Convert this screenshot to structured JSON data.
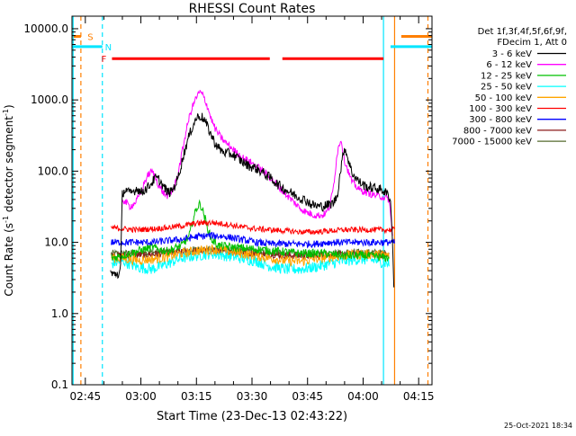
{
  "chart_data": {
    "type": "line",
    "title": "RHESSI Count Rates",
    "xlabel": "Start Time (23-Dec-13 02:43:22)",
    "ylabel_parts": [
      "Count Rate (s",
      "-1",
      " detector segment",
      "-1",
      ")"
    ],
    "yscale": "log",
    "ylim": [
      0.1,
      15000
    ],
    "xlim_minutes": [
      -1.6,
      95.6
    ],
    "x_ticks": [
      {
        "minute": 2,
        "label": "02:45"
      },
      {
        "minute": 17,
        "label": "03:00"
      },
      {
        "minute": 32,
        "label": "03:15"
      },
      {
        "minute": 47,
        "label": "03:30"
      },
      {
        "minute": 62,
        "label": "03:45"
      },
      {
        "minute": 77,
        "label": "04:00"
      },
      {
        "minute": 92,
        "label": "04:15"
      }
    ],
    "y_ticks": [
      {
        "value": 0.1,
        "label": "0.1"
      },
      {
        "value": 1,
        "label": "1.0"
      },
      {
        "value": 10,
        "label": "10.0"
      },
      {
        "value": 100,
        "label": "100.0"
      },
      {
        "value": 1000,
        "label": "1000.0"
      },
      {
        "value": 10000,
        "label": "10000.0"
      }
    ],
    "legend_header": [
      "Det 1f,3f,4f,5f,6f,9f,",
      "FDecim 1, Att 0"
    ],
    "legend_position": "right",
    "series": [
      {
        "name": "3 - 6 keV",
        "color": "#000000",
        "x": [
          8.8,
          9.0,
          9.6,
          10.5,
          11.0,
          11.5,
          12,
          13,
          14,
          15,
          16,
          17,
          18,
          19,
          20,
          21,
          22,
          23,
          24,
          25,
          26,
          27,
          28,
          29,
          30,
          31,
          32,
          33,
          34,
          35,
          36,
          37,
          38,
          39,
          40,
          42,
          44,
          46,
          48,
          50,
          52,
          54,
          56,
          58,
          60,
          62,
          63,
          64,
          65,
          66,
          67,
          68,
          69,
          70,
          71,
          72,
          74,
          76,
          78,
          80,
          82,
          83,
          84,
          84.5,
          85,
          85.3
        ],
        "y": [
          4,
          3.6,
          3.5,
          3.7,
          3.5,
          4,
          50,
          55,
          48,
          52,
          58,
          50,
          55,
          60,
          70,
          80,
          75,
          62,
          52,
          50,
          60,
          80,
          130,
          210,
          310,
          430,
          560,
          600,
          540,
          420,
          320,
          250,
          210,
          190,
          180,
          170,
          140,
          120,
          110,
          95,
          80,
          65,
          55,
          48,
          42,
          38,
          34,
          33,
          32,
          32,
          33,
          34,
          36,
          45,
          110,
          220,
          95,
          70,
          60,
          58,
          55,
          50,
          45,
          35,
          8,
          2.5
        ]
      },
      {
        "name": "6 - 12 keV",
        "color": "#ff00ff",
        "x": [
          12,
          13,
          14,
          15,
          16,
          17,
          18,
          19,
          20,
          21,
          22,
          23,
          24,
          25,
          26,
          27,
          28,
          29,
          30,
          31,
          32,
          33,
          34,
          35,
          36,
          37,
          38,
          39,
          40,
          42,
          44,
          46,
          48,
          50,
          52,
          54,
          56,
          58,
          60,
          62,
          64,
          66,
          67,
          68,
          69,
          70,
          71,
          72,
          74,
          76,
          78,
          80,
          82,
          84,
          85
        ],
        "y": [
          40,
          36,
          32,
          34,
          40,
          50,
          70,
          90,
          100,
          80,
          60,
          50,
          45,
          48,
          60,
          90,
          170,
          320,
          560,
          820,
          1100,
          1300,
          1100,
          800,
          540,
          400,
          330,
          280,
          250,
          200,
          160,
          140,
          120,
          100,
          80,
          62,
          48,
          38,
          30,
          26,
          24,
          24,
          26,
          32,
          60,
          180,
          290,
          140,
          70,
          55,
          50,
          46,
          44,
          40,
          12
        ]
      },
      {
        "name": "12 - 25 keV",
        "color": "#00c000",
        "x": [
          9,
          12,
          16,
          20,
          24,
          28,
          30,
          31,
          32,
          33,
          34,
          35,
          36,
          38,
          42,
          48,
          54,
          60,
          66,
          72,
          78,
          84
        ],
        "y": [
          6,
          6.5,
          7.5,
          8.5,
          7.5,
          9,
          12,
          20,
          30,
          35,
          25,
          16,
          11,
          9,
          8.5,
          8,
          7.5,
          7,
          7,
          6.5,
          6.5,
          6
        ]
      },
      {
        "name": "25 - 50 keV",
        "color": "#00ffff",
        "x": [
          9,
          12,
          16,
          20,
          24,
          28,
          32,
          36,
          40,
          44,
          48,
          52,
          56,
          60,
          64,
          68,
          72,
          76,
          80,
          84
        ],
        "y": [
          5,
          5.5,
          4.5,
          4.2,
          5,
          6,
          6.5,
          7,
          6.5,
          6,
          5.5,
          4.6,
          4.2,
          4.2,
          4.5,
          5,
          5.5,
          5.8,
          5.6,
          5
        ]
      },
      {
        "name": "50 - 100 keV",
        "color": "#ffa500",
        "x": [
          9,
          12,
          16,
          20,
          24,
          28,
          32,
          36,
          40,
          44,
          48,
          52,
          56,
          60,
          64,
          68,
          72,
          76,
          80,
          84
        ],
        "y": [
          6,
          6,
          5.6,
          5.8,
          6.2,
          7,
          7.6,
          8,
          7.6,
          7,
          6.5,
          6,
          5.5,
          5.4,
          5.8,
          6.2,
          6.5,
          6.8,
          6.8,
          6.5
        ]
      },
      {
        "name": "100 - 300 keV",
        "color": "#ff0000",
        "x": [
          9,
          12,
          16,
          20,
          24,
          28,
          32,
          36,
          40,
          44,
          48,
          52,
          56,
          60,
          64,
          68,
          72,
          76,
          80,
          84,
          85.5
        ],
        "y": [
          16,
          15.5,
          15,
          15.5,
          16,
          17,
          18.5,
          19,
          18,
          16.5,
          15.5,
          15,
          14.5,
          14,
          14,
          14.5,
          15,
          15,
          15,
          15,
          15
        ]
      },
      {
        "name": "300 - 800 keV",
        "color": "#0000ff",
        "x": [
          9,
          12,
          16,
          20,
          24,
          28,
          32,
          36,
          40,
          44,
          48,
          52,
          56,
          60,
          64,
          68,
          72,
          76,
          80,
          84,
          85.5
        ],
        "y": [
          10,
          10,
          10,
          10,
          10.5,
          11,
          12,
          12.5,
          12,
          11,
          10,
          9.5,
          9.5,
          9.5,
          9.5,
          10,
          10,
          10,
          10,
          10,
          10
        ]
      },
      {
        "name": "800 - 7000 keV",
        "color": "#8b1a1a",
        "x": [
          9,
          12,
          16,
          20,
          24,
          28,
          32,
          36,
          40,
          44,
          48,
          52,
          56,
          60,
          64,
          68,
          72,
          76,
          80,
          84
        ],
        "y": [
          6.5,
          6.5,
          6.6,
          6.8,
          7,
          7.2,
          7.5,
          7.6,
          7.4,
          7.2,
          7,
          6.8,
          6.6,
          6.5,
          6.5,
          6.6,
          6.8,
          6.8,
          6.8,
          6.6
        ]
      },
      {
        "name": "7000 - 15000 keV",
        "color": "#556b2f",
        "x": [
          9,
          12,
          16,
          20,
          24,
          28,
          32,
          36,
          40,
          44,
          48,
          52,
          56,
          60,
          64,
          68,
          72,
          76,
          80,
          84
        ],
        "y": [
          7,
          7,
          7.1,
          7.2,
          7.4,
          7.6,
          7.9,
          8,
          7.8,
          7.6,
          7.3,
          7.1,
          7,
          6.9,
          6.9,
          7,
          7.1,
          7.2,
          7.2,
          7
        ]
      }
    ],
    "flag_lines": [
      {
        "label": "S",
        "color": "#ff7f00",
        "label_x_minute": 2.6,
        "label_y_value": 7800,
        "bars": [
          [
            -1.6,
            0.8
          ],
          [
            87.3,
            95.6
          ]
        ],
        "vlines_solid": [
          85.5
        ],
        "vlines_dashed": [
          0.8,
          94.5
        ]
      },
      {
        "label": "N",
        "color": "#00e5ff",
        "label_x_minute": 7.3,
        "label_y_value": 5600,
        "bars": [
          [
            -1.6,
            6.6
          ],
          [
            84.4,
            95.6
          ]
        ],
        "vlines_solid": [
          -1.3,
          82.5
        ],
        "vlines_dashed": [
          6.6
        ]
      },
      {
        "label": "F",
        "color": "#ff0000",
        "label_x_minute": 6.3,
        "label_y_value": 3800,
        "bars": [
          [
            9.2,
            51.8
          ],
          [
            55.2,
            82.5
          ]
        ],
        "vlines_solid": [],
        "vlines_dashed": []
      }
    ]
  },
  "footer": {
    "timestamp": "25-Oct-2021 18:34"
  }
}
